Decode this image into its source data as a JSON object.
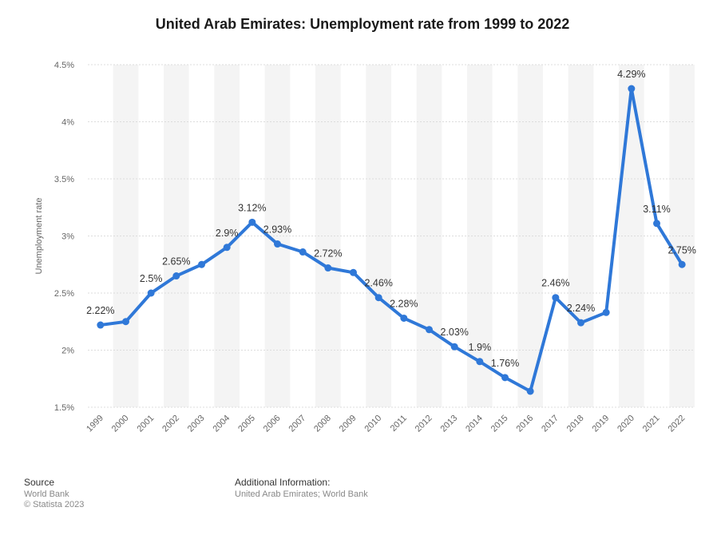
{
  "chart_data": {
    "type": "line",
    "title": "United Arab Emirates: Unemployment rate from 1999 to 2022",
    "xlabel": "",
    "ylabel": "Unemployment rate",
    "categories": [
      "1999",
      "2000",
      "2001",
      "2002",
      "2003",
      "2004",
      "2005",
      "2006",
      "2007",
      "2008",
      "2009",
      "2010",
      "2011",
      "2012",
      "2013",
      "2014",
      "2015",
      "2016",
      "2017",
      "2018",
      "2019",
      "2020",
      "2021",
      "2022"
    ],
    "values": [
      2.22,
      2.25,
      2.5,
      2.65,
      2.75,
      2.9,
      3.12,
      2.93,
      2.86,
      2.72,
      2.68,
      2.46,
      2.28,
      2.18,
      2.03,
      1.9,
      1.76,
      1.64,
      2.46,
      2.24,
      2.33,
      4.29,
      3.11,
      2.75
    ],
    "data_labels": [
      "2.22%",
      null,
      "2.5%",
      "2.65%",
      null,
      "2.9%",
      "3.12%",
      "2.93%",
      null,
      "2.72%",
      null,
      "2.46%",
      "2.28%",
      null,
      "2.03%",
      "1.9%",
      "1.76%",
      null,
      "2.46%",
      "2.24%",
      null,
      "4.29%",
      "3.11%",
      "2.75%"
    ],
    "ylim": [
      1.5,
      4.5
    ],
    "yticks": [
      1.5,
      2,
      2.5,
      3,
      3.5,
      4,
      4.5
    ],
    "ytick_labels": [
      "1.5%",
      "2%",
      "2.5%",
      "3%",
      "3.5%",
      "4%",
      "4.5%"
    ],
    "grid": true,
    "line_color": "#2f78d8"
  },
  "footer": {
    "source_heading": "Source",
    "source_line1": "World Bank",
    "source_line2": "© Statista 2023",
    "info_heading": "Additional Information:",
    "info_text": "United Arab Emirates; World Bank"
  }
}
